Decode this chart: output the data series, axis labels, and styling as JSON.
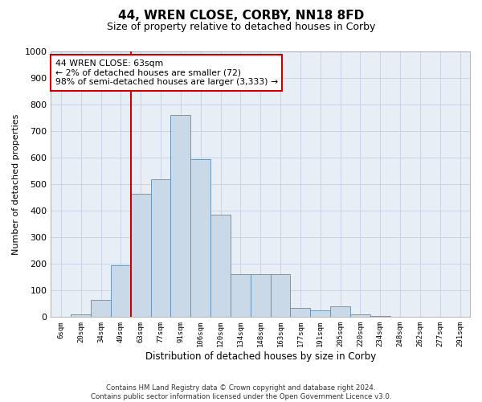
{
  "title": "44, WREN CLOSE, CORBY, NN18 8FD",
  "subtitle": "Size of property relative to detached houses in Corby",
  "xlabel": "Distribution of detached houses by size in Corby",
  "ylabel": "Number of detached properties",
  "footer_line1": "Contains HM Land Registry data © Crown copyright and database right 2024.",
  "footer_line2": "Contains public sector information licensed under the Open Government Licence v3.0.",
  "annotation_title": "44 WREN CLOSE: 63sqm",
  "annotation_line2": "← 2% of detached houses are smaller (72)",
  "annotation_line3": "98% of semi-detached houses are larger (3,333) →",
  "property_size_sqm": 63,
  "bar_color": "#c9d9e8",
  "bar_edge_color": "#5b8db8",
  "vline_color": "#cc0000",
  "annotation_box_color": "#cc0000",
  "grid_color": "#c8d4e4",
  "bg_color": "#e8eef6",
  "text_color": "#222222",
  "categories": [
    "6sqm",
    "20sqm",
    "34sqm",
    "49sqm",
    "63sqm",
    "77sqm",
    "91sqm",
    "106sqm",
    "120sqm",
    "134sqm",
    "148sqm",
    "163sqm",
    "177sqm",
    "191sqm",
    "205sqm",
    "220sqm",
    "234sqm",
    "248sqm",
    "262sqm",
    "277sqm",
    "291sqm"
  ],
  "values": [
    0,
    10,
    65,
    195,
    465,
    520,
    760,
    595,
    385,
    160,
    160,
    160,
    35,
    25,
    40,
    10,
    5,
    2,
    1,
    1,
    1
  ],
  "ylim": [
    0,
    1000
  ],
  "yticks": [
    0,
    100,
    200,
    300,
    400,
    500,
    600,
    700,
    800,
    900,
    1000
  ]
}
